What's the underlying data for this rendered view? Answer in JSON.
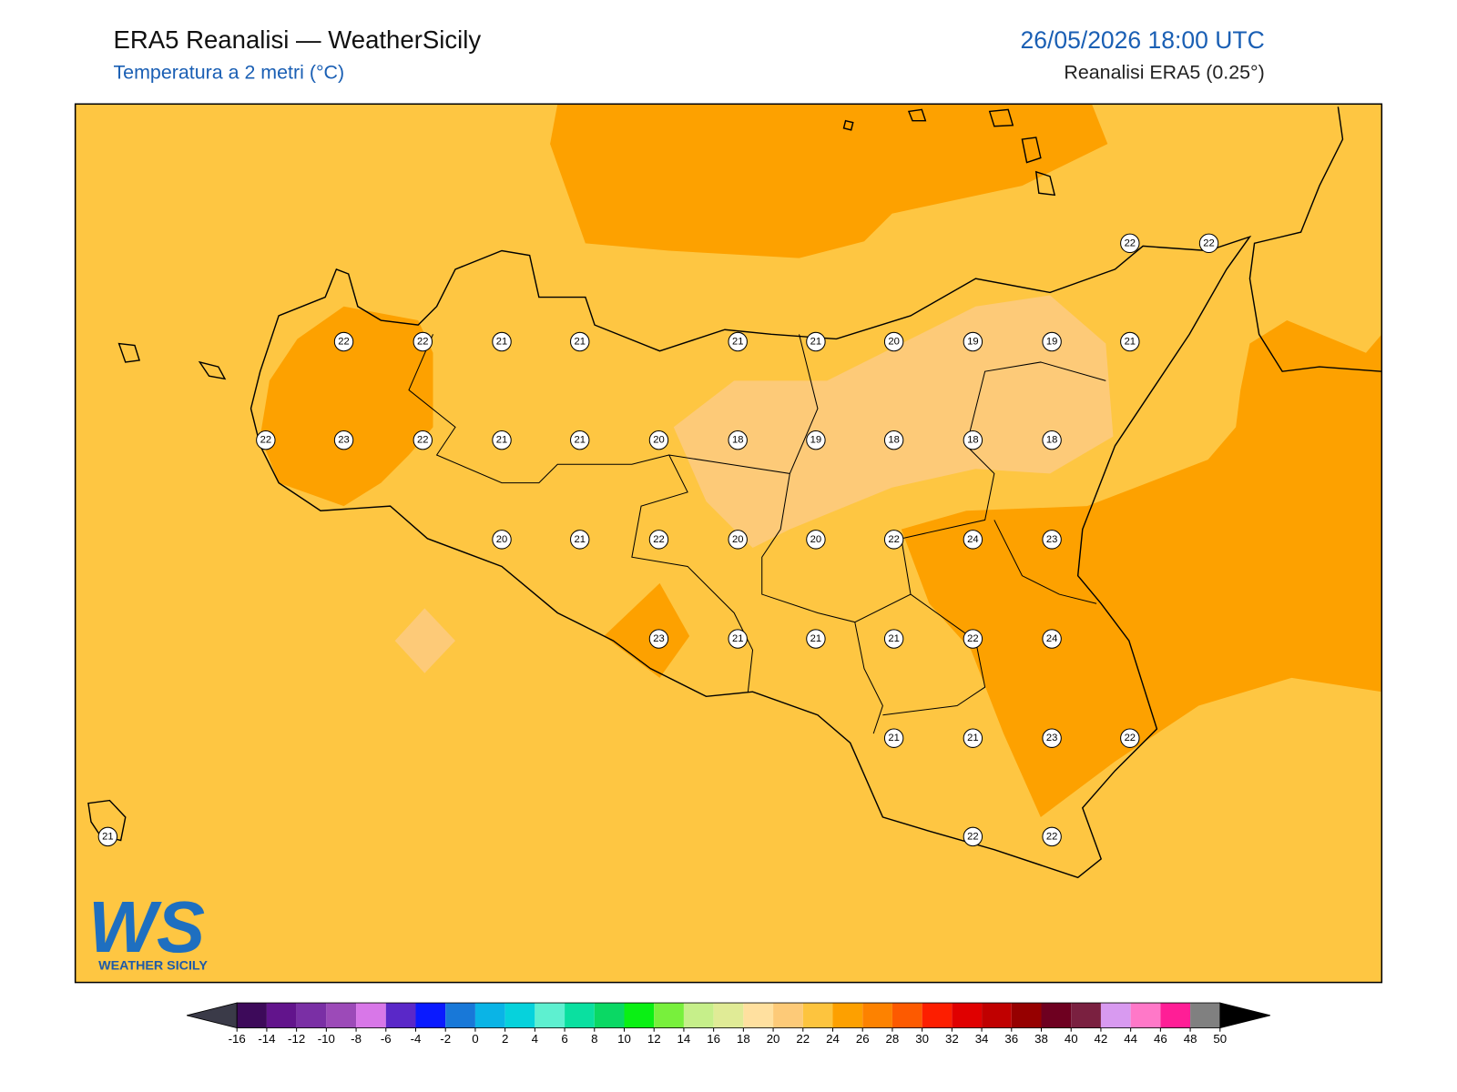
{
  "header": {
    "title": "ERA5 Reanalisi — WeatherSicily",
    "subtitle": "Temperatura a 2 metri (°C)",
    "datetime": "26/05/2026 18:00 UTC",
    "source": "Reanalisi ERA5 (0.25°)"
  },
  "stations": [
    22,
    22,
    22,
    22,
    21,
    21,
    21,
    21,
    20,
    19,
    19,
    21,
    22,
    23,
    22,
    21,
    21,
    20,
    18,
    19,
    18,
    18,
    18,
    20,
    21,
    22,
    20,
    20,
    22,
    24,
    23,
    23,
    21,
    21,
    21,
    22,
    24,
    21,
    21,
    23,
    22,
    21,
    22,
    22
  ],
  "colorbar": {
    "ticks": [
      -16,
      -14,
      -12,
      -10,
      -8,
      -6,
      -4,
      -2,
      0,
      2,
      4,
      6,
      8,
      10,
      12,
      14,
      16,
      18,
      20,
      22,
      24,
      26,
      28,
      30,
      32,
      34,
      36,
      38,
      40,
      42,
      44,
      46,
      48,
      50
    ],
    "colors": [
      "#3d0a5a",
      "#62148c",
      "#7a2fa5",
      "#9c4ab8",
      "#d877e8",
      "#5a28c8",
      "#0a1aff",
      "#1878d8",
      "#0ab4e6",
      "#06d2dc",
      "#5ef0d0",
      "#0ae0a0",
      "#0ad864",
      "#0af014",
      "#78f03c",
      "#c6ef8a",
      "#e0eb96",
      "#ffe09f",
      "#fdca78",
      "#fdc43e",
      "#fda000",
      "#fd8200",
      "#fd5a00",
      "#fd1e00",
      "#e00000",
      "#c00000",
      "#960000",
      "#6e0020",
      "#7a2040",
      "#d89af0",
      "#ff78c8",
      "#ff1e96",
      "#808080",
      "#404040"
    ]
  },
  "logo": {
    "mark": "WS",
    "name": "WEATHER SICILY"
  }
}
